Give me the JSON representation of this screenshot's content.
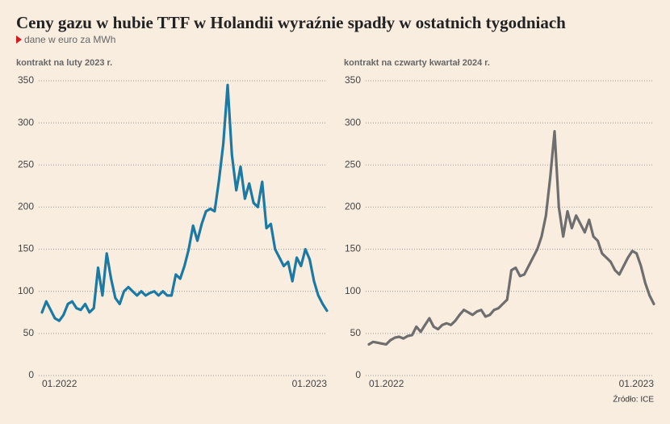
{
  "title": "Ceny gazu w hubie TTF w Holandii wyraźnie spadły w ostatnich tygodniach",
  "subtitle": "dane w euro za MWh",
  "source": "Źródło: ICE",
  "chart_data": [
    {
      "type": "line",
      "subtitle": "kontrakt na luty 2023 r.",
      "color": "#1b7aa3",
      "categories": [
        "01.2022",
        null,
        null,
        null,
        null,
        null,
        null,
        null,
        null,
        null,
        null,
        null,
        null,
        null,
        null,
        null,
        null,
        null,
        null,
        null,
        null,
        null,
        null,
        null,
        null,
        null,
        null,
        null,
        null,
        null,
        null,
        null,
        null,
        null,
        null,
        null,
        null,
        null,
        null,
        null,
        null,
        null,
        null,
        null,
        null,
        null,
        null,
        null,
        null,
        null,
        null,
        null,
        null,
        null,
        null,
        null,
        null,
        null,
        null,
        null,
        null,
        null,
        null,
        null,
        null,
        null,
        "01.2023"
      ],
      "values": [
        75,
        88,
        78,
        68,
        65,
        72,
        85,
        88,
        80,
        78,
        85,
        75,
        80,
        128,
        95,
        145,
        115,
        92,
        85,
        100,
        105,
        100,
        95,
        100,
        95,
        98,
        100,
        95,
        100,
        95,
        95,
        120,
        115,
        130,
        150,
        178,
        160,
        180,
        195,
        198,
        195,
        232,
        275,
        345,
        262,
        220,
        248,
        210,
        228,
        205,
        200,
        230,
        175,
        180,
        150,
        140,
        130,
        135,
        112,
        140,
        130,
        150,
        138,
        112,
        95,
        85,
        77
      ],
      "ylim": [
        0,
        350
      ],
      "yticks": [
        0,
        50,
        100,
        150,
        200,
        250,
        300,
        350
      ],
      "grid": true
    },
    {
      "type": "line",
      "subtitle": "kontrakt na czwarty kwartał 2024 r.",
      "color": "#6e6e6e",
      "categories": [
        "01.2022",
        null,
        null,
        null,
        null,
        null,
        null,
        null,
        null,
        null,
        null,
        null,
        null,
        null,
        null,
        null,
        null,
        null,
        null,
        null,
        null,
        null,
        null,
        null,
        null,
        null,
        null,
        null,
        null,
        null,
        null,
        null,
        null,
        null,
        null,
        null,
        null,
        null,
        null,
        null,
        null,
        null,
        null,
        null,
        null,
        null,
        null,
        null,
        null,
        null,
        null,
        null,
        null,
        null,
        null,
        null,
        null,
        null,
        null,
        null,
        null,
        null,
        null,
        null,
        null,
        null,
        "01.2023"
      ],
      "values": [
        37,
        40,
        39,
        38,
        37,
        42,
        45,
        46,
        44,
        47,
        48,
        58,
        52,
        60,
        68,
        58,
        55,
        60,
        62,
        60,
        65,
        72,
        78,
        75,
        72,
        76,
        78,
        70,
        72,
        78,
        80,
        85,
        90,
        125,
        128,
        118,
        120,
        130,
        140,
        150,
        165,
        190,
        235,
        290,
        200,
        165,
        195,
        175,
        190,
        180,
        170,
        185,
        165,
        160,
        145,
        140,
        135,
        125,
        120,
        130,
        140,
        148,
        145,
        130,
        110,
        95,
        85
      ],
      "ylim": [
        0,
        350
      ],
      "yticks": [
        0,
        50,
        100,
        150,
        200,
        250,
        300,
        350
      ],
      "grid": true
    }
  ]
}
